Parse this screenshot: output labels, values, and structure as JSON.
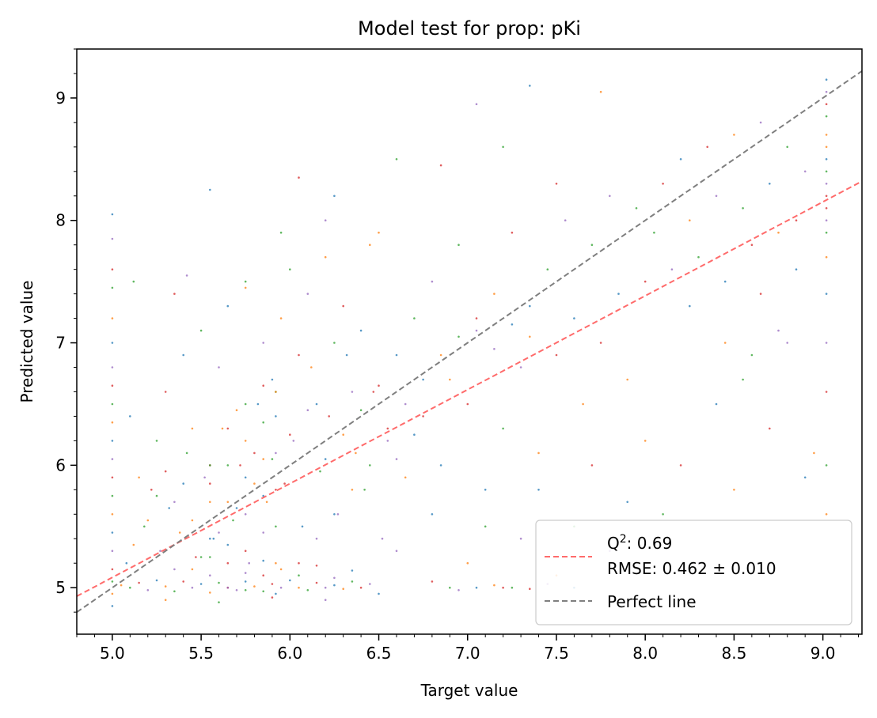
{
  "chart_data": {
    "type": "scatter",
    "title": "Model test for prop: pKi",
    "xlabel": "Target value",
    "ylabel": "Predicted value",
    "xlim": [
      4.8,
      9.22
    ],
    "ylim": [
      4.62,
      9.4
    ],
    "x_ticks": [
      5.0,
      5.5,
      6.0,
      6.5,
      7.0,
      7.5,
      8.0,
      8.5,
      9.0
    ],
    "x_tick_labels": [
      "5.0",
      "5.5",
      "6.0",
      "6.5",
      "7.0",
      "7.5",
      "8.0",
      "8.5",
      "9.0"
    ],
    "y_ticks": [
      5,
      6,
      7,
      8,
      9
    ],
    "y_tick_labels": [
      "5",
      "6",
      "7",
      "8",
      "9"
    ],
    "grid": false,
    "legend_position": "lower-right",
    "point_colors": [
      "#1f77b4",
      "#ff7f0e",
      "#2ca02c",
      "#d62728",
      "#9467bd"
    ],
    "series": [
      {
        "name": "Q²: 0.69\nRMSE: 0.462 ± 0.010",
        "kind": "line",
        "style": "dashed",
        "color": "#ff6b6b",
        "x": [
          4.8,
          9.22
        ],
        "y": [
          4.93,
          8.32
        ]
      },
      {
        "name": "Perfect line",
        "kind": "line",
        "style": "dashed",
        "color": "#7f7f7f",
        "x": [
          4.8,
          9.22
        ],
        "y": [
          4.8,
          9.22
        ]
      }
    ],
    "points": [
      [
        5.0,
        4.85
      ],
      [
        5.0,
        4.95
      ],
      [
        5.0,
        5.05
      ],
      [
        5.0,
        5.15
      ],
      [
        5.0,
        5.3
      ],
      [
        5.0,
        5.45
      ],
      [
        5.0,
        5.6
      ],
      [
        5.0,
        5.75
      ],
      [
        5.0,
        5.9
      ],
      [
        5.0,
        6.05
      ],
      [
        5.0,
        6.2
      ],
      [
        5.0,
        6.35
      ],
      [
        5.0,
        6.5
      ],
      [
        5.0,
        6.65
      ],
      [
        5.0,
        6.8
      ],
      [
        5.0,
        7.0
      ],
      [
        5.0,
        7.2
      ],
      [
        5.0,
        7.45
      ],
      [
        5.0,
        7.6
      ],
      [
        5.0,
        7.85
      ],
      [
        5.0,
        8.05
      ],
      [
        5.05,
        5.02
      ],
      [
        5.1,
        5.0
      ],
      [
        5.15,
        5.04
      ],
      [
        5.2,
        4.98
      ],
      [
        5.25,
        5.06
      ],
      [
        5.3,
        5.01
      ],
      [
        5.35,
        4.97
      ],
      [
        5.4,
        5.05
      ],
      [
        5.45,
        5.0
      ],
      [
        5.5,
        5.03
      ],
      [
        5.55,
        4.96
      ],
      [
        5.6,
        5.04
      ],
      [
        5.65,
        5.0
      ],
      [
        5.7,
        4.98
      ],
      [
        5.75,
        5.05
      ],
      [
        5.8,
        5.01
      ],
      [
        5.85,
        4.97
      ],
      [
        5.9,
        5.03
      ],
      [
        5.95,
        5.0
      ],
      [
        6.0,
        5.06
      ],
      [
        6.05,
        5.0
      ],
      [
        6.1,
        4.98
      ],
      [
        6.15,
        5.04
      ],
      [
        6.2,
        5.0
      ],
      [
        6.25,
        5.02
      ],
      [
        6.3,
        4.99
      ],
      [
        6.35,
        5.05
      ],
      [
        6.4,
        5.0
      ],
      [
        6.45,
        5.03
      ],
      [
        5.08,
        5.2
      ],
      [
        5.12,
        5.35
      ],
      [
        5.18,
        5.5
      ],
      [
        5.22,
        5.8
      ],
      [
        5.27,
        5.3
      ],
      [
        5.32,
        5.65
      ],
      [
        5.38,
        5.45
      ],
      [
        5.42,
        6.1
      ],
      [
        5.47,
        5.25
      ],
      [
        5.52,
        5.9
      ],
      [
        5.57,
        5.4
      ],
      [
        5.62,
        6.3
      ],
      [
        5.68,
        5.55
      ],
      [
        5.72,
        6.0
      ],
      [
        5.77,
        5.2
      ],
      [
        5.82,
        6.5
      ],
      [
        5.87,
        5.7
      ],
      [
        5.92,
        6.6
      ],
      [
        5.97,
        5.85
      ],
      [
        6.02,
        6.2
      ],
      [
        6.07,
        5.5
      ],
      [
        6.12,
        6.8
      ],
      [
        6.17,
        5.95
      ],
      [
        6.22,
        6.4
      ],
      [
        6.27,
        5.6
      ],
      [
        6.32,
        6.9
      ],
      [
        6.37,
        6.1
      ],
      [
        6.42,
        5.8
      ],
      [
        6.47,
        6.6
      ],
      [
        6.52,
        5.4
      ],
      [
        5.1,
        6.4
      ],
      [
        5.15,
        5.9
      ],
      [
        5.25,
        6.2
      ],
      [
        5.3,
        6.6
      ],
      [
        5.35,
        5.7
      ],
      [
        5.4,
        6.9
      ],
      [
        5.45,
        6.3
      ],
      [
        5.5,
        7.1
      ],
      [
        5.55,
        6.0
      ],
      [
        5.6,
        6.8
      ],
      [
        5.65,
        7.3
      ],
      [
        5.7,
        6.45
      ],
      [
        5.75,
        7.5
      ],
      [
        5.8,
        6.1
      ],
      [
        5.85,
        7.0
      ],
      [
        5.9,
        6.7
      ],
      [
        5.95,
        7.2
      ],
      [
        6.0,
        7.6
      ],
      [
        6.05,
        6.9
      ],
      [
        6.1,
        7.4
      ],
      [
        6.15,
        6.5
      ],
      [
        6.2,
        7.7
      ],
      [
        6.25,
        7.0
      ],
      [
        6.3,
        7.3
      ],
      [
        6.35,
        6.6
      ],
      [
        6.4,
        7.1
      ],
      [
        6.45,
        7.8
      ],
      [
        5.12,
        7.5
      ],
      [
        5.35,
        7.4
      ],
      [
        5.42,
        7.55
      ],
      [
        5.55,
        8.25
      ],
      [
        5.75,
        7.45
      ],
      [
        5.95,
        7.9
      ],
      [
        6.05,
        8.35
      ],
      [
        6.2,
        8.0
      ],
      [
        6.25,
        8.2
      ],
      [
        6.5,
        7.9
      ],
      [
        6.6,
        8.5
      ],
      [
        6.85,
        8.45
      ],
      [
        7.05,
        8.95
      ],
      [
        7.35,
        9.1
      ],
      [
        7.75,
        9.05
      ],
      [
        7.2,
        8.6
      ],
      [
        7.5,
        8.3
      ],
      [
        6.55,
        6.2
      ],
      [
        6.6,
        6.9
      ],
      [
        6.65,
        5.9
      ],
      [
        6.7,
        7.2
      ],
      [
        6.75,
        6.4
      ],
      [
        6.8,
        7.5
      ],
      [
        6.85,
        6.0
      ],
      [
        6.9,
        6.7
      ],
      [
        6.95,
        7.8
      ],
      [
        7.0,
        6.5
      ],
      [
        7.05,
        7.1
      ],
      [
        7.1,
        5.8
      ],
      [
        7.15,
        7.4
      ],
      [
        7.2,
        6.3
      ],
      [
        7.25,
        7.9
      ],
      [
        7.3,
        6.8
      ],
      [
        7.35,
        7.3
      ],
      [
        7.4,
        6.1
      ],
      [
        7.45,
        7.6
      ],
      [
        7.5,
        6.9
      ],
      [
        7.55,
        8.0
      ],
      [
        7.6,
        7.2
      ],
      [
        7.65,
        6.5
      ],
      [
        7.7,
        7.8
      ],
      [
        7.75,
        7.0
      ],
      [
        7.8,
        8.2
      ],
      [
        7.85,
        7.4
      ],
      [
        7.9,
        6.7
      ],
      [
        7.95,
        8.1
      ],
      [
        8.0,
        7.5
      ],
      [
        6.6,
        5.3
      ],
      [
        6.8,
        5.6
      ],
      [
        7.0,
        5.2
      ],
      [
        7.1,
        5.5
      ],
      [
        7.2,
        5.0
      ],
      [
        7.3,
        5.4
      ],
      [
        7.4,
        5.8
      ],
      [
        7.5,
        5.1
      ],
      [
        7.6,
        5.5
      ],
      [
        7.7,
        6.0
      ],
      [
        7.8,
        5.3
      ],
      [
        7.9,
        5.7
      ],
      [
        8.0,
        6.2
      ],
      [
        8.1,
        5.6
      ],
      [
        8.2,
        6.0
      ],
      [
        8.3,
        5.2
      ],
      [
        8.4,
        6.5
      ],
      [
        8.5,
        5.8
      ],
      [
        8.6,
        6.9
      ],
      [
        8.7,
        6.3
      ],
      [
        8.8,
        7.0
      ],
      [
        8.9,
        5.9
      ],
      [
        8.95,
        6.1
      ],
      [
        8.05,
        7.9
      ],
      [
        8.1,
        8.3
      ],
      [
        8.15,
        7.6
      ],
      [
        8.2,
        8.5
      ],
      [
        8.25,
        8.0
      ],
      [
        8.3,
        7.7
      ],
      [
        8.35,
        8.6
      ],
      [
        8.4,
        8.2
      ],
      [
        8.45,
        7.5
      ],
      [
        8.5,
        8.7
      ],
      [
        8.55,
        8.1
      ],
      [
        8.6,
        7.8
      ],
      [
        8.65,
        8.8
      ],
      [
        8.7,
        8.3
      ],
      [
        8.75,
        7.9
      ],
      [
        8.8,
        8.6
      ],
      [
        8.85,
        8.0
      ],
      [
        8.9,
        8.4
      ],
      [
        8.25,
        7.3
      ],
      [
        8.45,
        7.0
      ],
      [
        8.55,
        6.7
      ],
      [
        8.65,
        7.4
      ],
      [
        8.75,
        7.1
      ],
      [
        8.85,
        7.6
      ],
      [
        9.02,
        5.6
      ],
      [
        9.02,
        6.0
      ],
      [
        9.02,
        6.6
      ],
      [
        9.02,
        7.0
      ],
      [
        9.02,
        7.4
      ],
      [
        9.02,
        7.7
      ],
      [
        9.02,
        7.9
      ],
      [
        9.02,
        8.1
      ],
      [
        9.02,
        8.3
      ],
      [
        9.02,
        8.5
      ],
      [
        9.02,
        8.7
      ],
      [
        9.02,
        8.85
      ],
      [
        9.02,
        8.95
      ],
      [
        9.02,
        9.05
      ],
      [
        9.02,
        9.15
      ],
      [
        9.02,
        8.6
      ],
      [
        9.02,
        8.4
      ],
      [
        9.02,
        8.2
      ],
      [
        9.02,
        8.0
      ],
      [
        5.92,
        4.95
      ],
      [
        5.92,
        5.2
      ],
      [
        5.92,
        5.5
      ],
      [
        5.92,
        5.8
      ],
      [
        5.92,
        6.1
      ],
      [
        5.92,
        6.4
      ],
      [
        5.92,
        6.6
      ],
      [
        5.75,
        4.98
      ],
      [
        5.75,
        5.3
      ],
      [
        5.75,
        5.6
      ],
      [
        5.75,
        5.9
      ],
      [
        5.75,
        6.2
      ],
      [
        5.75,
        6.5
      ],
      [
        5.85,
        5.1
      ],
      [
        5.85,
        5.45
      ],
      [
        5.85,
        5.75
      ],
      [
        5.85,
        6.05
      ],
      [
        5.85,
        6.35
      ],
      [
        5.85,
        6.65
      ],
      [
        5.65,
        5.0
      ],
      [
        5.65,
        5.35
      ],
      [
        5.65,
        5.7
      ],
      [
        5.65,
        6.0
      ],
      [
        5.65,
        6.3
      ],
      [
        5.55,
        5.1
      ],
      [
        5.55,
        5.4
      ],
      [
        5.55,
        5.7
      ],
      [
        5.55,
        6.0
      ],
      [
        6.05,
        5.2
      ],
      [
        6.15,
        5.4
      ],
      [
        6.25,
        5.6
      ],
      [
        6.35,
        5.8
      ],
      [
        6.45,
        6.0
      ],
      [
        6.55,
        6.3
      ],
      [
        6.65,
        6.5
      ],
      [
        6.75,
        6.7
      ],
      [
        6.85,
        6.9
      ],
      [
        6.95,
        7.05
      ],
      [
        7.05,
        7.2
      ],
      [
        7.15,
        6.95
      ],
      [
        7.25,
        7.15
      ],
      [
        7.35,
        7.05
      ],
      [
        6.9,
        5.0
      ],
      [
        6.8,
        5.05
      ],
      [
        6.95,
        4.98
      ],
      [
        7.05,
        5.0
      ],
      [
        7.15,
        5.02
      ],
      [
        7.25,
        5.0
      ],
      [
        7.35,
        4.99
      ],
      [
        7.45,
        5.03
      ],
      [
        7.6,
        5.0
      ],
      [
        5.3,
        4.9
      ],
      [
        5.6,
        4.88
      ],
      [
        5.9,
        4.92
      ],
      [
        6.2,
        4.9
      ],
      [
        6.5,
        4.95
      ],
      [
        5.45,
        5.15
      ],
      [
        5.55,
        5.25
      ],
      [
        5.65,
        5.2
      ],
      [
        5.75,
        5.12
      ],
      [
        5.85,
        5.22
      ],
      [
        5.95,
        5.15
      ],
      [
        6.05,
        5.1
      ],
      [
        6.15,
        5.18
      ],
      [
        6.25,
        5.08
      ],
      [
        6.35,
        5.14
      ],
      [
        5.2,
        5.55
      ],
      [
        5.25,
        5.75
      ],
      [
        5.3,
        5.95
      ],
      [
        5.35,
        5.15
      ],
      [
        5.4,
        5.85
      ],
      [
        5.45,
        5.55
      ],
      [
        5.5,
        5.25
      ],
      [
        5.55,
        5.85
      ],
      [
        5.6,
        5.45
      ],
      [
        5.7,
        5.65
      ],
      [
        5.8,
        5.85
      ],
      [
        5.9,
        6.05
      ],
      [
        6.0,
        6.25
      ],
      [
        6.1,
        6.45
      ],
      [
        6.2,
        6.05
      ],
      [
        6.3,
        6.25
      ],
      [
        6.4,
        6.45
      ],
      [
        6.5,
        6.65
      ],
      [
        6.6,
        6.05
      ],
      [
        6.7,
        6.25
      ]
    ]
  }
}
